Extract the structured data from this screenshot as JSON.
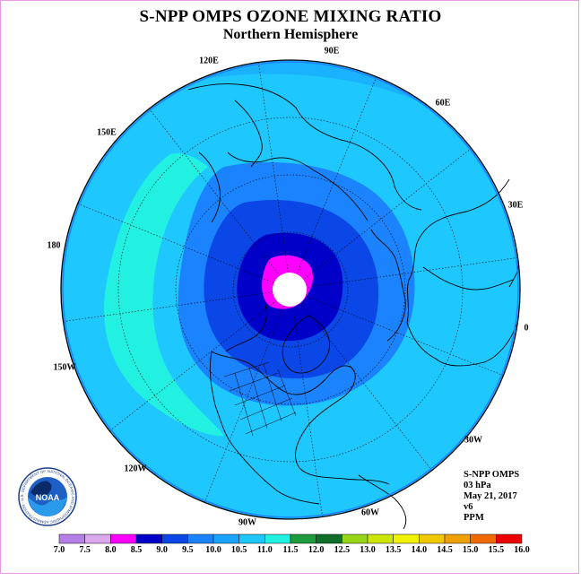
{
  "title": "S-NPP OMPS OZONE MIXING RATIO",
  "subtitle": "Northern Hemisphere",
  "longitude_labels": [
    "90E",
    "60E",
    "30E",
    "0",
    "30W",
    "60W",
    "90W",
    "120W",
    "150W",
    "180",
    "150E",
    "120E"
  ],
  "info": {
    "instrument": "S-NPP OMPS",
    "level": "03 hPa",
    "date": "May 21, 2017",
    "version": "v6",
    "unit": "PPM"
  },
  "colorbar": {
    "tick_labels": [
      "7.0",
      "7.5",
      "8.0",
      "8.5",
      "9.0",
      "9.5",
      "10.0",
      "10.5",
      "11.0",
      "11.5",
      "12.0",
      "12.5",
      "13.0",
      "13.5",
      "14.0",
      "14.5",
      "15.0",
      "15.5",
      "16.0"
    ],
    "colors": [
      "#b77fe8",
      "#dba8ee",
      "#ff00ff",
      "#0000c8",
      "#0a47e6",
      "#1c83ff",
      "#1aa4ff",
      "#1ec8ff",
      "#22f0e0",
      "#1d9c3d",
      "#0e6e2a",
      "#97d617",
      "#cce60a",
      "#f2f200",
      "#f0c800",
      "#f0a000",
      "#f06a00",
      "#ea0000",
      "#8a4a30"
    ]
  },
  "logo": {
    "text": "NOAA",
    "ring_text": "NATIONAL OCEANIC AND ATMOSPHERIC ADMINISTRATION · U.S. DEPARTMENT OF COMMERCE"
  },
  "colors": {
    "background_field": "#1ec8ff",
    "low_band": "#22f0e0",
    "band_9_5": "#1c83ff",
    "band_9_0": "#0a47e6",
    "band_8_5": "#0000c8",
    "band_8_0": "#ff00ff",
    "frame": "#e89ce8"
  }
}
